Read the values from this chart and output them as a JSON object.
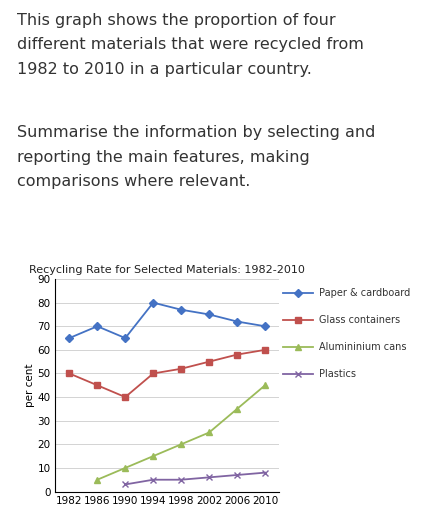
{
  "title": "Recycling Rate for Selected Materials: 1982-2010",
  "ylabel": "per cent",
  "years": [
    1982,
    1986,
    1990,
    1994,
    1998,
    2002,
    2006,
    2010
  ],
  "paper": [
    65,
    70,
    65,
    80,
    77,
    75,
    72,
    70
  ],
  "glass": [
    50,
    45,
    40,
    50,
    52,
    55,
    58,
    60
  ],
  "aluminium": [
    null,
    5,
    10,
    15,
    20,
    25,
    35,
    45
  ],
  "plastics": [
    null,
    null,
    3,
    5,
    5,
    6,
    7,
    8
  ],
  "paper_color": "#4472C4",
  "glass_color": "#C0504D",
  "aluminium_color": "#9BBB59",
  "plastics_color": "#8064A2",
  "ylim": [
    0,
    90
  ],
  "yticks": [
    0,
    10,
    20,
    30,
    40,
    50,
    60,
    70,
    80,
    90
  ],
  "bg_color": "#FFFFFF",
  "text_para1_line1": "This graph shows the proportion of four",
  "text_para1_line2": "different materials that were recycled from",
  "text_para1_line3": "1982 to 2010 in a particular country.",
  "text_para2_line1": "Summarise the information by selecting and",
  "text_para2_line2": "reporting the main features, making",
  "text_para2_line3": "comparisons where relevant.",
  "legend_labels": [
    "Paper & cardboard",
    "Glass containers",
    "Alumininium cans",
    "Plastics"
  ],
  "text_fontsize": 11.5,
  "title_fontsize": 8,
  "tick_fontsize": 7.5,
  "ylabel_fontsize": 7.5
}
